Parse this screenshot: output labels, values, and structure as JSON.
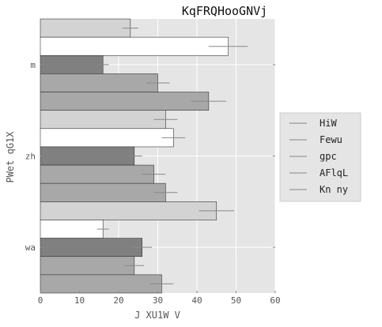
{
  "chart_data": {
    "type": "bar",
    "orientation": "horizontal",
    "title": "KqFRQHooGNVj",
    "xlabel": "J XU1W V",
    "ylabel": "PWet qG1X",
    "xlim": [
      0,
      60
    ],
    "xticks": [
      0,
      10,
      20,
      30,
      40,
      50,
      60
    ],
    "categories": [
      "m",
      "zh",
      "wa"
    ],
    "grid": true,
    "legend_position": "right",
    "series": [
      {
        "name": "HiW",
        "color": "#d3d3d3",
        "values": [
          23,
          32,
          45
        ],
        "errors": [
          2,
          3,
          4.5
        ]
      },
      {
        "name": "Fewu",
        "color": "#ffffff",
        "values": [
          48,
          34,
          16
        ],
        "errors": [
          5,
          3,
          1.5
        ]
      },
      {
        "name": "gpc",
        "color": "#808080",
        "values": [
          16,
          24,
          26
        ],
        "errors": [
          1.5,
          2,
          2.5
        ]
      },
      {
        "name": "AFlqL",
        "color": "#a8a8a8",
        "values": [
          30,
          29,
          24
        ],
        "errors": [
          3,
          3,
          2.5
        ]
      },
      {
        "name": "Kn ny",
        "color": "#a8a8a8",
        "values": [
          43,
          32,
          31
        ],
        "errors": [
          4.5,
          3,
          3
        ]
      }
    ]
  }
}
